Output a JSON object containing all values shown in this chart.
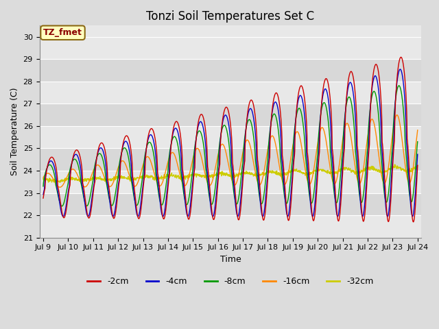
{
  "title": "Tonzi Soil Temperatures Set C",
  "xlabel": "Time",
  "ylabel": "Soil Temperature (C)",
  "ylim": [
    21.0,
    30.5
  ],
  "yticks": [
    21.0,
    22.0,
    23.0,
    24.0,
    25.0,
    26.0,
    27.0,
    28.0,
    29.0,
    30.0
  ],
  "x_start_day": 9,
  "x_end_day": 24,
  "xtick_days": [
    9,
    10,
    11,
    12,
    13,
    14,
    15,
    16,
    17,
    18,
    19,
    20,
    21,
    22,
    23,
    24
  ],
  "series_colors": {
    "-2cm": "#cc0000",
    "-4cm": "#0000cc",
    "-8cm": "#009900",
    "-16cm": "#ff8800",
    "-32cm": "#cccc00"
  },
  "legend_label": "TZ_fmet",
  "bg_color": "#dcdcdc",
  "plot_bg_color": "#e8e8e8",
  "title_fontsize": 12,
  "axis_label_fontsize": 9,
  "tick_fontsize": 8,
  "legend_fontsize": 9,
  "n_points": 1440
}
